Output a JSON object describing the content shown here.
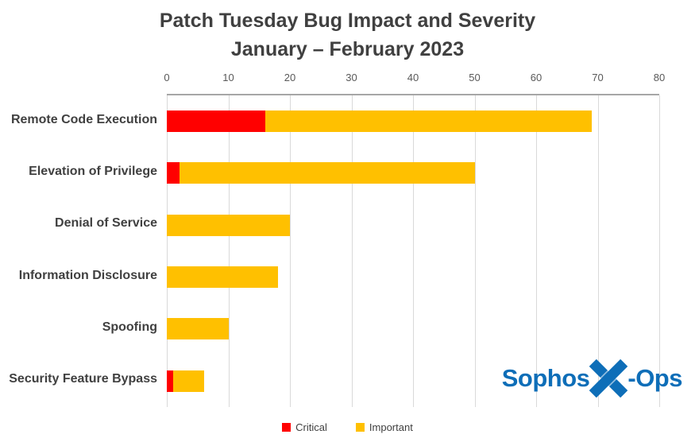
{
  "chart_data": {
    "type": "bar",
    "orientation": "horizontal",
    "stacked": true,
    "title": "Patch Tuesday Bug Impact and Severity",
    "subtitle": "January – February 2023",
    "categories": [
      "Remote Code Execution",
      "Elevation of Privilege",
      "Denial of Service",
      "Information Disclosure",
      "Spoofing",
      "Security Feature Bypass"
    ],
    "series": [
      {
        "name": "Critical",
        "color": "#FF0000",
        "values": [
          16,
          2,
          0,
          0,
          0,
          1
        ]
      },
      {
        "name": "Important",
        "color": "#FFC000",
        "values": [
          53,
          48,
          20,
          18,
          10,
          5
        ]
      }
    ],
    "totals": [
      69,
      50,
      20,
      18,
      10,
      6
    ],
    "xlabel": "",
    "ylabel": "",
    "xlim": [
      0,
      80
    ],
    "xticks": [
      0,
      10,
      20,
      30,
      40,
      50,
      60,
      70,
      80
    ],
    "grid": true,
    "legend_position": "bottom"
  },
  "logo": {
    "brand_left": "Sophos",
    "brand_right": "-Ops",
    "color": "#0E6EB8"
  }
}
